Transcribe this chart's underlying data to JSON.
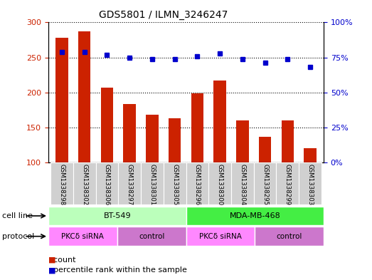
{
  "title": "GDS5801 / ILMN_3246247",
  "samples": [
    "GSM1338298",
    "GSM1338302",
    "GSM1338306",
    "GSM1338297",
    "GSM1338301",
    "GSM1338305",
    "GSM1338296",
    "GSM1338300",
    "GSM1338304",
    "GSM1338295",
    "GSM1338299",
    "GSM1338303"
  ],
  "counts": [
    278,
    287,
    207,
    183,
    168,
    163,
    199,
    217,
    160,
    137,
    160,
    120
  ],
  "percentiles": [
    79,
    79,
    77,
    75,
    74,
    74,
    76,
    78,
    74,
    71,
    74,
    68
  ],
  "bar_color": "#cc2200",
  "dot_color": "#0000cc",
  "ylim_left": [
    100,
    300
  ],
  "ylim_right": [
    0,
    100
  ],
  "yticks_left": [
    100,
    150,
    200,
    250,
    300
  ],
  "yticks_right": [
    0,
    25,
    50,
    75,
    100
  ],
  "cell_line_groups": [
    {
      "label": "BT-549",
      "start": 0,
      "end": 6,
      "color": "#bbffbb"
    },
    {
      "label": "MDA-MB-468",
      "start": 6,
      "end": 12,
      "color": "#44ee44"
    }
  ],
  "protocol_groups": [
    {
      "label": "PKCδ siRNA",
      "start": 0,
      "end": 3,
      "color": "#ff88ff"
    },
    {
      "label": "control",
      "start": 3,
      "end": 6,
      "color": "#cc77cc"
    },
    {
      "label": "PKCδ siRNA",
      "start": 6,
      "end": 9,
      "color": "#ff88ff"
    },
    {
      "label": "control",
      "start": 9,
      "end": 12,
      "color": "#cc77cc"
    }
  ],
  "cell_line_label": "cell line",
  "protocol_label": "protocol",
  "legend_count_label": "count",
  "legend_pct_label": "percentile rank within the sample",
  "background_gray": "#d0d0d0",
  "bar_width": 0.55
}
